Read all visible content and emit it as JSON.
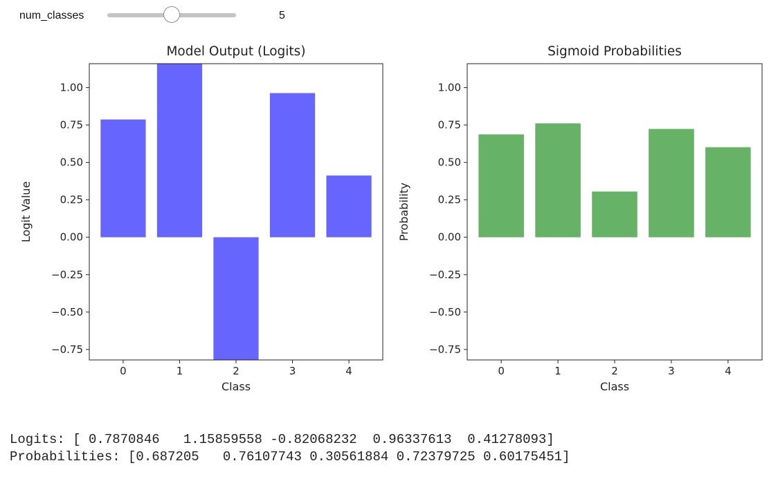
{
  "slider": {
    "label": "num_classes",
    "value": "5",
    "min": 1,
    "max": 10,
    "current": 5
  },
  "chart_data": [
    {
      "type": "bar",
      "title": "Model Output (Logits)",
      "xlabel": "Class",
      "ylabel": "Logit Value",
      "categories": [
        "0",
        "1",
        "2",
        "3",
        "4"
      ],
      "values": [
        0.7870846,
        1.15859558,
        -0.82068232,
        0.96337613,
        0.41278093
      ],
      "ylim": [
        -0.82,
        1.16
      ],
      "yticks": [
        -0.75,
        -0.5,
        -0.25,
        0.0,
        0.25,
        0.5,
        0.75,
        1.0
      ],
      "ytick_labels": [
        "−0.75",
        "−0.50",
        "−0.25",
        "0.00",
        "0.25",
        "0.50",
        "0.75",
        "1.00"
      ],
      "color": "#6666ff",
      "grid": false
    },
    {
      "type": "bar",
      "title": "Sigmoid Probabilities",
      "xlabel": "Class",
      "ylabel": "Probability",
      "categories": [
        "0",
        "1",
        "2",
        "3",
        "4"
      ],
      "values": [
        0.687205,
        0.76107743,
        0.30561884,
        0.72379725,
        0.60175451
      ],
      "ylim": [
        -0.82,
        1.16
      ],
      "yticks": [
        -0.75,
        -0.5,
        -0.25,
        0.0,
        0.25,
        0.5,
        0.75,
        1.0
      ],
      "ytick_labels": [
        "−0.75",
        "−0.50",
        "−0.25",
        "0.00",
        "0.25",
        "0.50",
        "0.75",
        "1.00"
      ],
      "color": "#66b266",
      "grid": false
    }
  ],
  "output": {
    "logits_line": "Logits: [ 0.7870846   1.15859558 -0.82068232  0.96337613  0.41278093]",
    "probs_line": "Probabilities: [0.687205   0.76107743 0.30561884 0.72379725 0.60175451]"
  }
}
